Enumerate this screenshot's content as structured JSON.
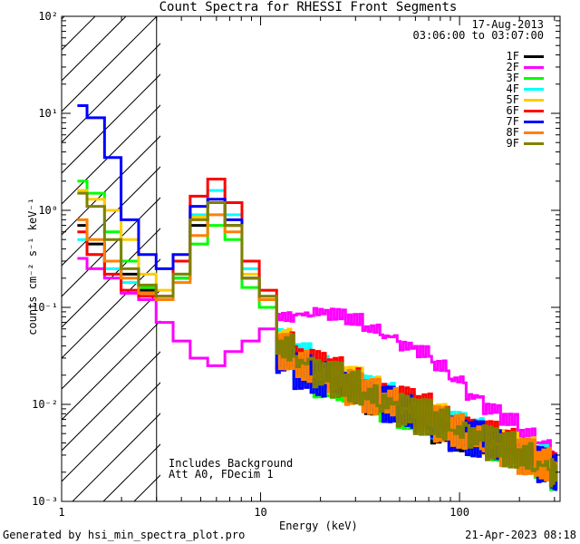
{
  "chart_data": {
    "type": "line",
    "title": "Count Spectra for RHESSI Front Segments",
    "xlabel": "Energy (keV)",
    "ylabel": "counts cm⁻² s⁻¹ keV⁻¹",
    "xscale": "log",
    "yscale": "log",
    "xlim": [
      1.0,
      320
    ],
    "ylim": [
      0.001,
      100
    ],
    "x_ticks": [
      "1",
      "10",
      "100"
    ],
    "y_ticks": [
      "10⁻³",
      "10⁻²",
      "10⁻¹",
      "10⁰",
      "10¹",
      "10²"
    ],
    "date": "17-Aug-2013",
    "time_range": "03:06:00 to 03:07:00",
    "attenuator_threshold_kev": 3.0,
    "annotations": [
      "Includes Background",
      "Att A0, FDecim 1"
    ],
    "series": [
      {
        "name": "1F",
        "color": "#000000",
        "x": [
          1.2,
          1.5,
          1.8,
          2.2,
          2.7,
          3.3,
          4.0,
          4.9,
          6.0,
          7.3,
          8.9,
          10.9,
          13.3,
          16.2,
          19.8,
          24.2,
          29.5,
          36.0,
          44.0,
          53.7,
          65.5,
          80.0,
          97.7,
          119.2,
          145.5,
          177.6,
          216.8,
          264.6,
          310
        ],
        "y": [
          0.7,
          0.45,
          0.3,
          0.22,
          0.15,
          0.13,
          0.2,
          0.7,
          1.2,
          0.7,
          0.2,
          0.12,
          0.035,
          0.025,
          0.02,
          0.018,
          0.015,
          0.012,
          0.01,
          0.008,
          0.007,
          0.006,
          0.005,
          0.0045,
          0.004,
          0.0035,
          0.003,
          0.0025,
          0.002
        ]
      },
      {
        "name": "2F",
        "color": "#ff00ff",
        "x": [
          1.2,
          1.5,
          1.8,
          2.2,
          2.7,
          3.3,
          4.0,
          4.9,
          6.0,
          7.3,
          8.9,
          10.9,
          13.3,
          16.2,
          19.8,
          24.2,
          29.5,
          36.0,
          44.0,
          53.7,
          65.5,
          80.0,
          97.7,
          119.2,
          145.5,
          177.6,
          216.8,
          264.6,
          310
        ],
        "y": [
          0.32,
          0.25,
          0.2,
          0.14,
          0.12,
          0.07,
          0.045,
          0.03,
          0.025,
          0.035,
          0.045,
          0.06,
          0.08,
          0.085,
          0.09,
          0.085,
          0.075,
          0.06,
          0.05,
          0.04,
          0.035,
          0.025,
          0.018,
          0.012,
          0.009,
          0.007,
          0.005,
          0.004,
          0.003
        ]
      },
      {
        "name": "3F",
        "color": "#00ff00",
        "x": [
          1.2,
          1.5,
          1.8,
          2.2,
          2.7,
          3.3,
          4.0,
          4.9,
          6.0,
          7.3,
          8.9,
          10.9,
          13.3,
          16.2,
          19.8,
          24.2,
          29.5,
          36.0,
          44.0,
          53.7,
          65.5,
          80.0,
          97.7,
          119.2,
          145.5,
          177.6,
          216.8,
          264.6,
          310
        ],
        "y": [
          2.0,
          1.5,
          0.6,
          0.3,
          0.16,
          0.12,
          0.2,
          0.45,
          0.7,
          0.5,
          0.16,
          0.1,
          0.03,
          0.022,
          0.018,
          0.016,
          0.014,
          0.012,
          0.01,
          0.0085,
          0.007,
          0.006,
          0.005,
          0.0045,
          0.004,
          0.0035,
          0.003,
          0.0025,
          0.002
        ]
      },
      {
        "name": "4F",
        "color": "#00ffff",
        "x": [
          1.2,
          1.5,
          1.8,
          2.2,
          2.7,
          3.3,
          4.0,
          4.9,
          6.0,
          7.3,
          8.9,
          10.9,
          13.3,
          16.2,
          19.8,
          24.2,
          29.5,
          36.0,
          44.0,
          53.7,
          65.5,
          80.0,
          97.7,
          119.2,
          145.5,
          177.6,
          216.8,
          264.6,
          310
        ],
        "y": [
          0.5,
          0.35,
          0.25,
          0.18,
          0.14,
          0.12,
          0.22,
          0.9,
          1.6,
          0.9,
          0.25,
          0.13,
          0.04,
          0.028,
          0.022,
          0.019,
          0.016,
          0.013,
          0.011,
          0.009,
          0.0075,
          0.0065,
          0.0055,
          0.0048,
          0.0042,
          0.0036,
          0.003,
          0.0025,
          0.002
        ]
      },
      {
        "name": "5F",
        "color": "#ffcc00",
        "x": [
          1.2,
          1.5,
          1.8,
          2.2,
          2.7,
          3.3,
          4.0,
          4.9,
          6.0,
          7.3,
          8.9,
          10.9,
          13.3,
          16.2,
          19.8,
          24.2,
          29.5,
          36.0,
          44.0,
          53.7,
          65.5,
          80.0,
          97.7,
          119.2,
          145.5,
          177.6,
          216.8,
          264.6,
          310
        ],
        "y": [
          1.6,
          1.3,
          1.0,
          0.5,
          0.22,
          0.15,
          0.22,
          0.85,
          1.3,
          0.8,
          0.22,
          0.13,
          0.04,
          0.028,
          0.022,
          0.019,
          0.016,
          0.013,
          0.011,
          0.009,
          0.0078,
          0.0066,
          0.0056,
          0.0048,
          0.0042,
          0.0036,
          0.003,
          0.0025,
          0.0021
        ]
      },
      {
        "name": "6F",
        "color": "#ff0000",
        "x": [
          1.2,
          1.5,
          1.8,
          2.2,
          2.7,
          3.3,
          4.0,
          4.9,
          6.0,
          7.3,
          8.9,
          10.9,
          13.3,
          16.2,
          19.8,
          24.2,
          29.5,
          36.0,
          44.0,
          53.7,
          65.5,
          80.0,
          97.7,
          119.2,
          145.5,
          177.6,
          216.8,
          264.6,
          310
        ],
        "y": [
          0.6,
          0.35,
          0.22,
          0.15,
          0.13,
          0.12,
          0.3,
          1.4,
          2.1,
          1.2,
          0.3,
          0.15,
          0.045,
          0.03,
          0.024,
          0.02,
          0.017,
          0.014,
          0.012,
          0.01,
          0.0085,
          0.007,
          0.006,
          0.005,
          0.0044,
          0.0038,
          0.0032,
          0.0027,
          0.0022
        ]
      },
      {
        "name": "7F",
        "color": "#0000ff",
        "x": [
          1.2,
          1.5,
          1.8,
          2.2,
          2.7,
          3.3,
          4.0,
          4.9,
          6.0,
          7.3,
          8.9,
          10.9,
          13.3,
          16.2,
          19.8,
          24.2,
          29.5,
          36.0,
          44.0,
          53.7,
          65.5,
          80.0,
          97.7,
          119.2,
          145.5,
          177.6,
          216.8,
          264.6,
          310
        ],
        "y": [
          12.0,
          9.0,
          3.5,
          0.8,
          0.35,
          0.25,
          0.35,
          1.1,
          1.3,
          0.8,
          0.2,
          0.12,
          0.03,
          0.022,
          0.018,
          0.016,
          0.014,
          0.012,
          0.01,
          0.0085,
          0.007,
          0.006,
          0.005,
          0.0044,
          0.0038,
          0.0033,
          0.0028,
          0.0024,
          0.002
        ]
      },
      {
        "name": "8F",
        "color": "#ff8000",
        "x": [
          1.2,
          1.5,
          1.8,
          2.2,
          2.7,
          3.3,
          4.0,
          4.9,
          6.0,
          7.3,
          8.9,
          10.9,
          13.3,
          16.2,
          19.8,
          24.2,
          29.5,
          36.0,
          44.0,
          53.7,
          65.5,
          80.0,
          97.7,
          119.2,
          145.5,
          177.6,
          216.8,
          264.6,
          310
        ],
        "y": [
          0.8,
          0.5,
          0.3,
          0.2,
          0.14,
          0.12,
          0.18,
          0.55,
          0.9,
          0.6,
          0.2,
          0.12,
          0.035,
          0.025,
          0.02,
          0.018,
          0.015,
          0.012,
          0.0105,
          0.0088,
          0.0074,
          0.0063,
          0.0053,
          0.0046,
          0.004,
          0.0034,
          0.0029,
          0.0024,
          0.002
        ]
      },
      {
        "name": "9F",
        "color": "#808000",
        "x": [
          1.2,
          1.5,
          1.8,
          2.2,
          2.7,
          3.3,
          4.0,
          4.9,
          6.0,
          7.3,
          8.9,
          10.9,
          13.3,
          16.2,
          19.8,
          24.2,
          29.5,
          36.0,
          44.0,
          53.7,
          65.5,
          80.0,
          97.7,
          119.2,
          145.5,
          177.6,
          216.8,
          264.6,
          310
        ],
        "y": [
          1.5,
          1.1,
          0.5,
          0.25,
          0.17,
          0.13,
          0.22,
          0.8,
          1.2,
          0.7,
          0.2,
          0.13,
          0.038,
          0.027,
          0.021,
          0.018,
          0.015,
          0.0125,
          0.0105,
          0.0088,
          0.0074,
          0.0063,
          0.0053,
          0.0046,
          0.004,
          0.0034,
          0.0029,
          0.0024,
          0.002
        ]
      }
    ]
  },
  "footer": {
    "generated_by": "Generated by hsi_min_spectra_plot.pro",
    "timestamp": "21-Apr-2023 08:18"
  }
}
